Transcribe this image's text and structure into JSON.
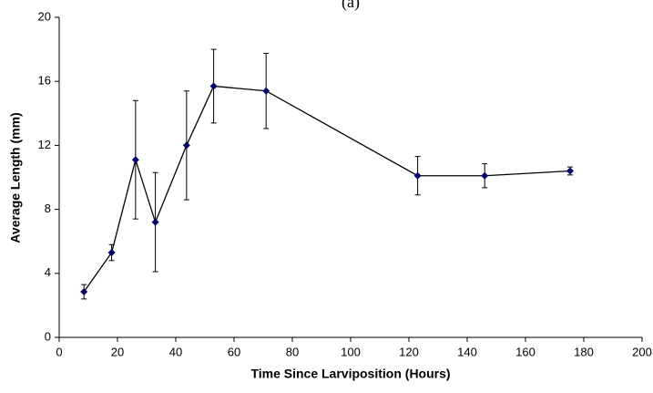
{
  "chart_data": {
    "type": "line",
    "title": "(a)",
    "xlabel": "Time Since Larviposition (Hours)",
    "ylabel": "Average Length (mm)",
    "x": [
      8.5,
      18,
      26.2,
      33,
      43.7,
      53,
      71,
      123,
      146,
      175.3
    ],
    "values": [
      2.85,
      5.3,
      11.1,
      7.2,
      12.0,
      15.7,
      15.4,
      10.1,
      10.1,
      10.4
    ],
    "errors": [
      0.45,
      0.5,
      3.7,
      3.1,
      3.4,
      2.3,
      2.35,
      1.2,
      0.75,
      0.25
    ],
    "color": "#000066",
    "line_color": "#000000",
    "xlim": [
      0,
      200
    ],
    "xticks": [
      0,
      20,
      40,
      60,
      80,
      100,
      120,
      140,
      160,
      180,
      200
    ],
    "ylim": [
      0,
      20
    ],
    "yticks": [
      0,
      4,
      8,
      12,
      16,
      20
    ],
    "grid": false
  }
}
